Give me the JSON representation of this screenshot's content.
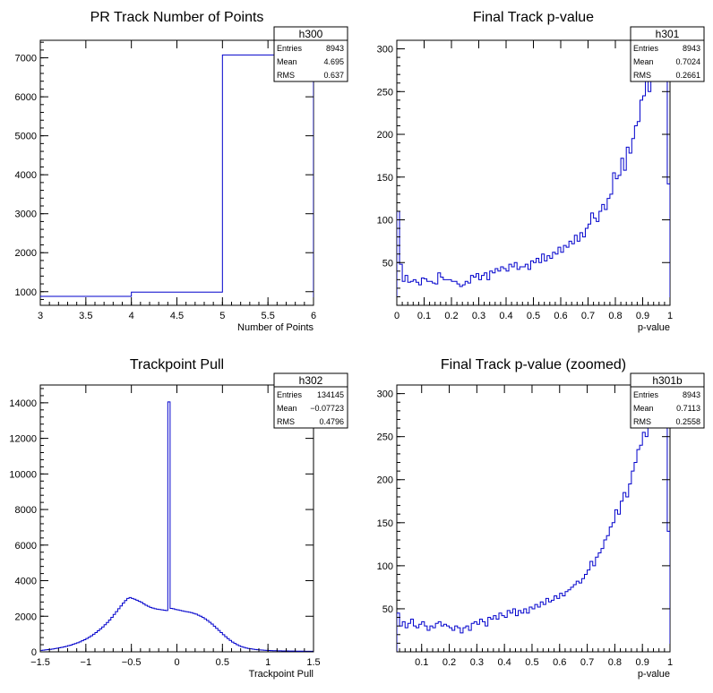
{
  "line_color": "#0000cc",
  "chart_data": [
    {
      "type": "histogram",
      "title": "PR Track Number of Points",
      "xlabel": "Number of Points",
      "ylabel": "",
      "xlim": [
        3,
        6
      ],
      "ylim": [
        650,
        7450
      ],
      "xticks": [
        3,
        3.5,
        4,
        4.5,
        5,
        5.5,
        6
      ],
      "xtick_labels": [
        "3",
        "3.5",
        "4",
        "4.5",
        "5",
        "5.5",
        "6"
      ],
      "yticks": [
        1000,
        2000,
        3000,
        4000,
        5000,
        6000,
        7000
      ],
      "ytick_labels": [
        "1000",
        "2000",
        "3000",
        "4000",
        "5000",
        "6000",
        "7000"
      ],
      "bin_edges": [
        3,
        4,
        5,
        6
      ],
      "values": [
        880,
        990,
        7073
      ],
      "stats": {
        "name": "h300",
        "entries": "8943",
        "mean": "4.695",
        "rms": "0.637"
      }
    },
    {
      "type": "histogram",
      "title": "Final Track p-value",
      "xlabel": "p-value",
      "ylabel": "",
      "xlim": [
        0,
        1
      ],
      "ylim": [
        0,
        310
      ],
      "xticks": [
        0,
        0.1,
        0.2,
        0.3,
        0.4,
        0.5,
        0.6,
        0.7,
        0.8,
        0.9,
        1
      ],
      "xtick_labels": [
        "0",
        "0.1",
        "0.2",
        "0.3",
        "0.4",
        "0.5",
        "0.6",
        "0.7",
        "0.8",
        "0.9",
        "1"
      ],
      "yticks": [
        50,
        100,
        150,
        200,
        250,
        300
      ],
      "ytick_labels": [
        "50",
        "100",
        "150",
        "200",
        "250",
        "300"
      ],
      "bin_start": 0,
      "bin_width": 0.01,
      "values": [
        110,
        48,
        28,
        35,
        27,
        28,
        30,
        27,
        24,
        32,
        31,
        28,
        28,
        26,
        25,
        38,
        33,
        30,
        30,
        30,
        28,
        28,
        25,
        22,
        24,
        28,
        26,
        35,
        33,
        37,
        30,
        35,
        38,
        30,
        40,
        38,
        43,
        40,
        45,
        43,
        40,
        48,
        45,
        50,
        42,
        45,
        45,
        48,
        42,
        52,
        50,
        55,
        50,
        60,
        52,
        58,
        55,
        62,
        60,
        68,
        62,
        70,
        68,
        75,
        72,
        82,
        75,
        85,
        80,
        90,
        95,
        108,
        102,
        98,
        110,
        118,
        112,
        125,
        130,
        155,
        148,
        152,
        172,
        158,
        185,
        178,
        195,
        210,
        215,
        240,
        245,
        262,
        250,
        275,
        285,
        290,
        300,
        295,
        305,
        142
      ],
      "stats": {
        "name": "h301",
        "entries": "8943",
        "mean": "0.7024",
        "rms": "0.2661"
      }
    },
    {
      "type": "histogram",
      "title": "Trackpoint Pull",
      "xlabel": "Trackpoint Pull",
      "ylabel": "",
      "xlim": [
        -1.5,
        1.5
      ],
      "ylim": [
        0,
        15000
      ],
      "xticks": [
        -1.5,
        -1,
        -0.5,
        0,
        0.5,
        1,
        1.5
      ],
      "xtick_labels": [
        "−1.5",
        "−1",
        "−0.5",
        "0",
        "0.5",
        "1",
        "1.5"
      ],
      "yticks": [
        0,
        2000,
        4000,
        6000,
        8000,
        10000,
        12000,
        14000
      ],
      "ytick_labels": [
        "0",
        "2000",
        "4000",
        "6000",
        "8000",
        "10000",
        "12000",
        "14000"
      ],
      "bin_start": -1.5,
      "bin_width": 0.025,
      "values": [
        80,
        95,
        110,
        125,
        140,
        160,
        180,
        200,
        225,
        250,
        280,
        310,
        345,
        380,
        420,
        465,
        510,
        560,
        620,
        680,
        750,
        820,
        900,
        990,
        1080,
        1180,
        1290,
        1400,
        1520,
        1650,
        1790,
        1940,
        2100,
        2260,
        2420,
        2580,
        2740,
        2880,
        3000,
        3050,
        3000,
        2960,
        2900,
        2840,
        2780,
        2700,
        2620,
        2560,
        2500,
        2460,
        2420,
        2400,
        2380,
        2360,
        2340,
        2320,
        14050,
        2440,
        2420,
        2380,
        2360,
        2330,
        2300,
        2270,
        2250,
        2230,
        2200,
        2160,
        2120,
        2060,
        2000,
        1930,
        1850,
        1760,
        1660,
        1560,
        1440,
        1320,
        1200,
        1080,
        960,
        850,
        740,
        640,
        550,
        470,
        400,
        340,
        290,
        250,
        215,
        190,
        170,
        150,
        135,
        120,
        108,
        98,
        90,
        82,
        75,
        70,
        66,
        62,
        58,
        55,
        52,
        50,
        48,
        46,
        44,
        42,
        40,
        38,
        36,
        35,
        34,
        33,
        32,
        31
      ],
      "stats": {
        "name": "h302",
        "entries": "134145",
        "mean": "−0.07723",
        "rms": "0.4796"
      }
    },
    {
      "type": "histogram",
      "title": "Final Track p-value (zoomed)",
      "xlabel": "p-value",
      "ylabel": "",
      "xlim": [
        0.01,
        1
      ],
      "ylim": [
        0,
        310
      ],
      "xticks": [
        0.1,
        0.2,
        0.3,
        0.4,
        0.5,
        0.6,
        0.7,
        0.8,
        0.9,
        1
      ],
      "xtick_labels": [
        "0.1",
        "0.2",
        "0.3",
        "0.4",
        "0.5",
        "0.6",
        "0.7",
        "0.8",
        "0.9",
        "1"
      ],
      "yticks": [
        50,
        100,
        150,
        200,
        250,
        300
      ],
      "ytick_labels": [
        "50",
        "100",
        "150",
        "200",
        "250",
        "300"
      ],
      "bin_start": 0.01,
      "bin_width": 0.01,
      "values": [
        45,
        30,
        35,
        28,
        33,
        38,
        30,
        28,
        32,
        35,
        30,
        25,
        30,
        28,
        33,
        35,
        30,
        32,
        30,
        28,
        25,
        30,
        28,
        22,
        28,
        30,
        25,
        33,
        35,
        32,
        38,
        35,
        30,
        40,
        38,
        42,
        38,
        45,
        42,
        40,
        48,
        45,
        50,
        42,
        48,
        45,
        50,
        45,
        52,
        50,
        55,
        52,
        58,
        55,
        62,
        58,
        60,
        65,
        62,
        68,
        65,
        70,
        72,
        75,
        78,
        82,
        80,
        85,
        90,
        95,
        105,
        100,
        110,
        115,
        120,
        130,
        135,
        145,
        150,
        165,
        160,
        175,
        185,
        180,
        195,
        210,
        220,
        235,
        240,
        255,
        250,
        265,
        270,
        285,
        280,
        290,
        295,
        300,
        140
      ],
      "stats": {
        "name": "h301b",
        "entries": "8943",
        "mean": "0.7113",
        "rms": "0.2558"
      }
    }
  ],
  "stats_labels": {
    "entries": "Entries",
    "mean": "Mean",
    "rms": "RMS"
  }
}
